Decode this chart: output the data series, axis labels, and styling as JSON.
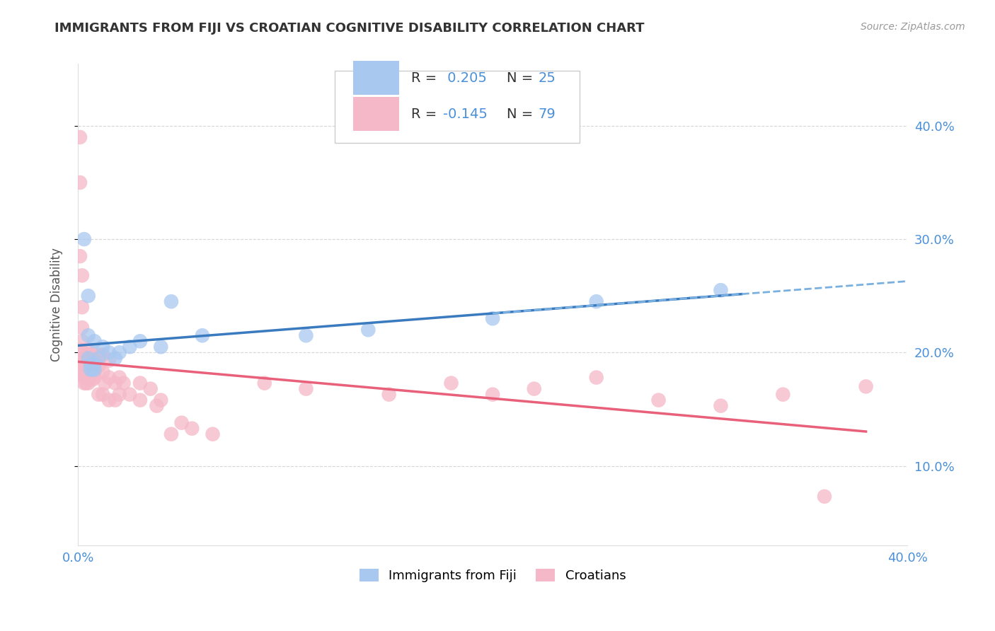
{
  "title": "IMMIGRANTS FROM FIJI VS CROATIAN COGNITIVE DISABILITY CORRELATION CHART",
  "source": "Source: ZipAtlas.com",
  "ylabel": "Cognitive Disability",
  "ytick_labels": [
    "10.0%",
    "20.0%",
    "30.0%",
    "40.0%"
  ],
  "ytick_values": [
    0.1,
    0.2,
    0.3,
    0.4
  ],
  "xlim": [
    0.0,
    0.4
  ],
  "ylim": [
    0.03,
    0.455
  ],
  "fiji_color": "#a8c8f0",
  "croatian_color": "#f5b8c8",
  "fiji_R": 0.205,
  "fiji_N": 25,
  "croatian_R": -0.145,
  "croatian_N": 79,
  "legend_label_fiji": "Immigrants from Fiji",
  "legend_label_croatian": "Croatians",
  "fiji_scatter": [
    [
      0.003,
      0.3
    ],
    [
      0.005,
      0.25
    ],
    [
      0.005,
      0.215
    ],
    [
      0.005,
      0.195
    ],
    [
      0.006,
      0.19
    ],
    [
      0.006,
      0.185
    ],
    [
      0.007,
      0.185
    ],
    [
      0.008,
      0.21
    ],
    [
      0.008,
      0.19
    ],
    [
      0.008,
      0.185
    ],
    [
      0.01,
      0.195
    ],
    [
      0.012,
      0.205
    ],
    [
      0.015,
      0.2
    ],
    [
      0.018,
      0.195
    ],
    [
      0.02,
      0.2
    ],
    [
      0.025,
      0.205
    ],
    [
      0.03,
      0.21
    ],
    [
      0.04,
      0.205
    ],
    [
      0.045,
      0.245
    ],
    [
      0.06,
      0.215
    ],
    [
      0.11,
      0.215
    ],
    [
      0.14,
      0.22
    ],
    [
      0.2,
      0.23
    ],
    [
      0.25,
      0.245
    ],
    [
      0.31,
      0.255
    ]
  ],
  "croatian_scatter": [
    [
      0.001,
      0.39
    ],
    [
      0.001,
      0.35
    ],
    [
      0.001,
      0.285
    ],
    [
      0.002,
      0.268
    ],
    [
      0.002,
      0.24
    ],
    [
      0.002,
      0.222
    ],
    [
      0.002,
      0.21
    ],
    [
      0.002,
      0.202
    ],
    [
      0.002,
      0.198
    ],
    [
      0.002,
      0.193
    ],
    [
      0.002,
      0.188
    ],
    [
      0.002,
      0.183
    ],
    [
      0.002,
      0.18
    ],
    [
      0.003,
      0.195
    ],
    [
      0.003,
      0.192
    ],
    [
      0.003,
      0.188
    ],
    [
      0.003,
      0.185
    ],
    [
      0.003,
      0.182
    ],
    [
      0.003,
      0.178
    ],
    [
      0.003,
      0.173
    ],
    [
      0.004,
      0.195
    ],
    [
      0.004,
      0.19
    ],
    [
      0.004,
      0.185
    ],
    [
      0.004,
      0.178
    ],
    [
      0.004,
      0.173
    ],
    [
      0.005,
      0.203
    ],
    [
      0.005,
      0.198
    ],
    [
      0.005,
      0.193
    ],
    [
      0.005,
      0.188
    ],
    [
      0.005,
      0.183
    ],
    [
      0.005,
      0.173
    ],
    [
      0.006,
      0.198
    ],
    [
      0.006,
      0.193
    ],
    [
      0.006,
      0.188
    ],
    [
      0.006,
      0.178
    ],
    [
      0.007,
      0.198
    ],
    [
      0.007,
      0.193
    ],
    [
      0.007,
      0.183
    ],
    [
      0.007,
      0.176
    ],
    [
      0.008,
      0.193
    ],
    [
      0.008,
      0.183
    ],
    [
      0.008,
      0.178
    ],
    [
      0.01,
      0.198
    ],
    [
      0.01,
      0.188
    ],
    [
      0.01,
      0.163
    ],
    [
      0.012,
      0.198
    ],
    [
      0.012,
      0.183
    ],
    [
      0.012,
      0.163
    ],
    [
      0.013,
      0.173
    ],
    [
      0.015,
      0.193
    ],
    [
      0.015,
      0.178
    ],
    [
      0.015,
      0.158
    ],
    [
      0.018,
      0.173
    ],
    [
      0.018,
      0.158
    ],
    [
      0.02,
      0.178
    ],
    [
      0.02,
      0.163
    ],
    [
      0.022,
      0.173
    ],
    [
      0.025,
      0.163
    ],
    [
      0.03,
      0.173
    ],
    [
      0.03,
      0.158
    ],
    [
      0.035,
      0.168
    ],
    [
      0.038,
      0.153
    ],
    [
      0.04,
      0.158
    ],
    [
      0.045,
      0.128
    ],
    [
      0.05,
      0.138
    ],
    [
      0.055,
      0.133
    ],
    [
      0.065,
      0.128
    ],
    [
      0.09,
      0.173
    ],
    [
      0.11,
      0.168
    ],
    [
      0.15,
      0.163
    ],
    [
      0.18,
      0.173
    ],
    [
      0.2,
      0.163
    ],
    [
      0.22,
      0.168
    ],
    [
      0.25,
      0.178
    ],
    [
      0.28,
      0.158
    ],
    [
      0.31,
      0.153
    ],
    [
      0.34,
      0.163
    ],
    [
      0.36,
      0.073
    ],
    [
      0.38,
      0.17
    ]
  ],
  "background_color": "#ffffff",
  "grid_color": "#cccccc",
  "title_color": "#333333",
  "source_color": "#999999",
  "fiji_line_color": "#3a7abf",
  "croatian_line_color": "#e8607a",
  "fiji_dashed_color": "#7ab0e0",
  "tick_label_color": "#4a90d9",
  "legend_r_label_color": "#333333",
  "legend_value_color": "#4a90d9"
}
